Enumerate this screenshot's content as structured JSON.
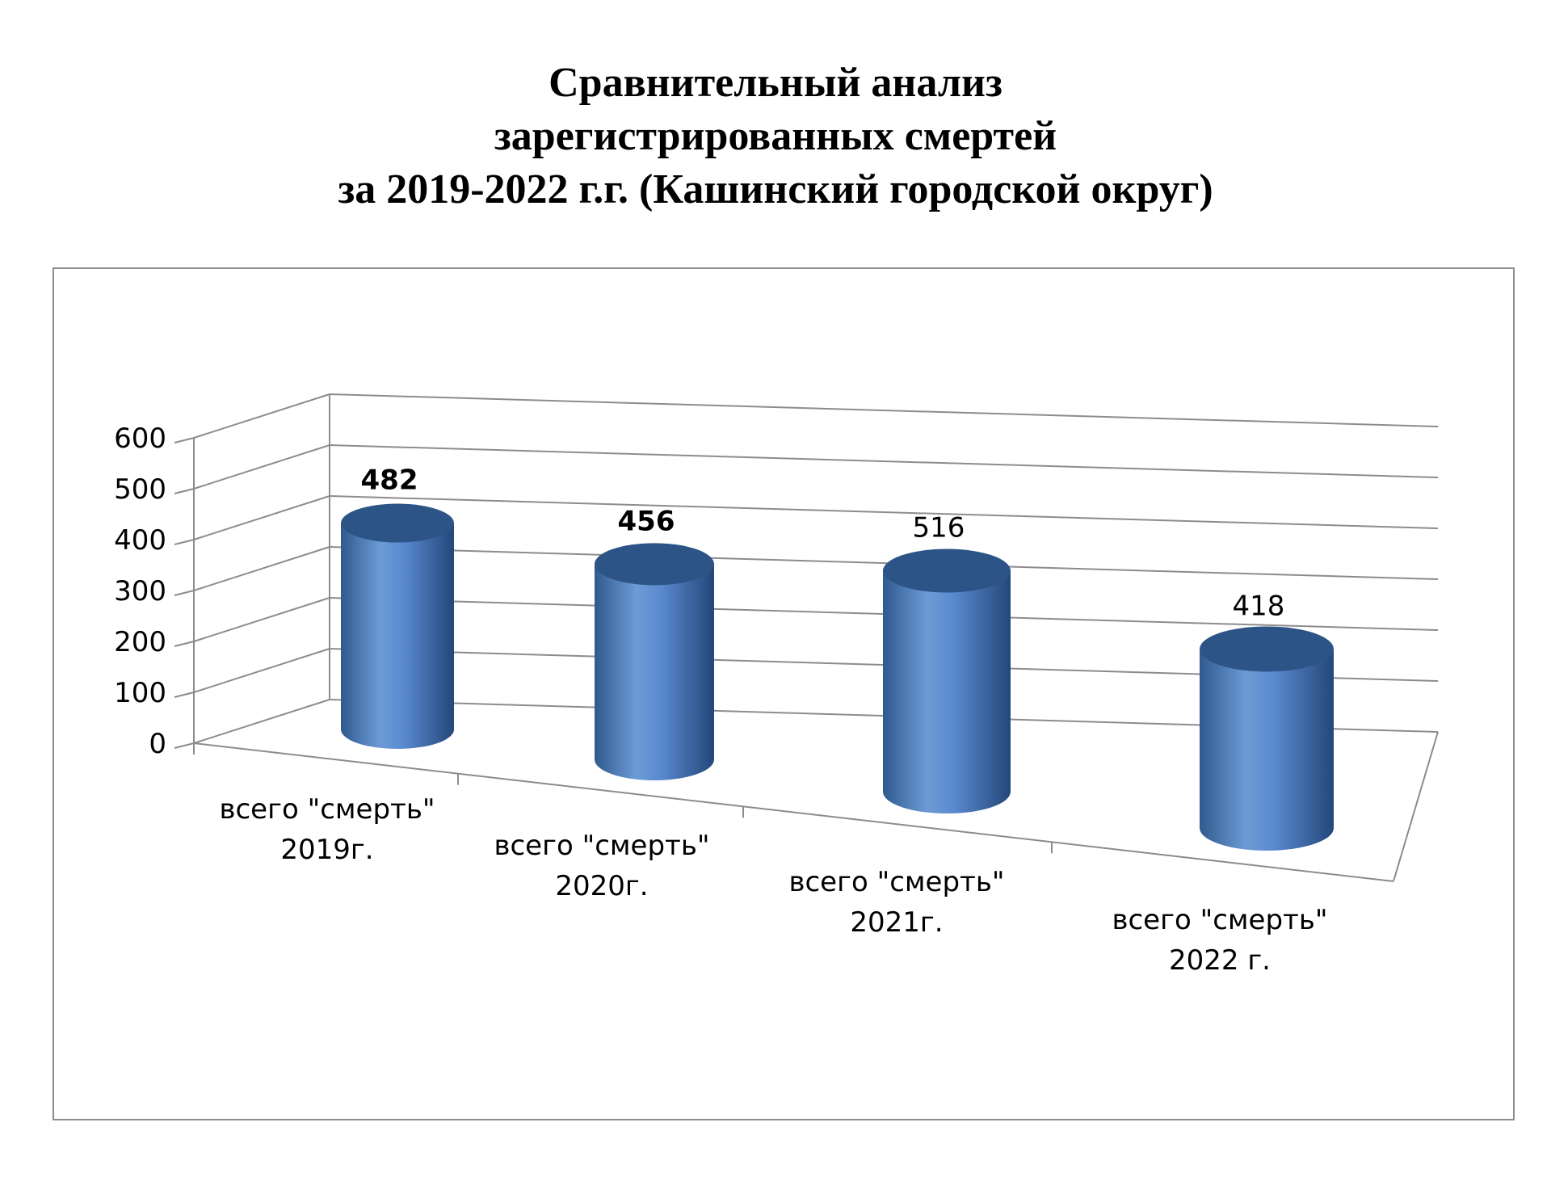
{
  "title_lines": [
    "Сравнительный анализ",
    "зарегистрированных смертей",
    "за 2019-2022 г.г. (Кашинский городской округ)"
  ],
  "chart_data": {
    "type": "bar",
    "title": "Сравнительный анализ зарегистрированных смертей за 2019-2022 г.г. (Кашинский городской округ)",
    "categories": [
      [
        "всего \"смерть\"",
        "2019г."
      ],
      [
        "всего \"смерть\"",
        "2020г."
      ],
      [
        "всего \"смерть\"",
        "2021г."
      ],
      [
        "всего \"смерть\"",
        "2022 г."
      ]
    ],
    "values": [
      482,
      456,
      516,
      418
    ],
    "data_labels": [
      "482",
      "456",
      "516",
      "418"
    ],
    "ylim": [
      0,
      600
    ],
    "yticks": [
      0,
      100,
      200,
      300,
      400,
      500,
      600
    ],
    "grid": true,
    "legend": "none",
    "shape": "3d-cylinder",
    "colors": {
      "bar": "#4f81bd",
      "bar_dark": "#2c5486",
      "bar_light": "#7ea7dc",
      "grid": "#8c8c8c"
    }
  }
}
